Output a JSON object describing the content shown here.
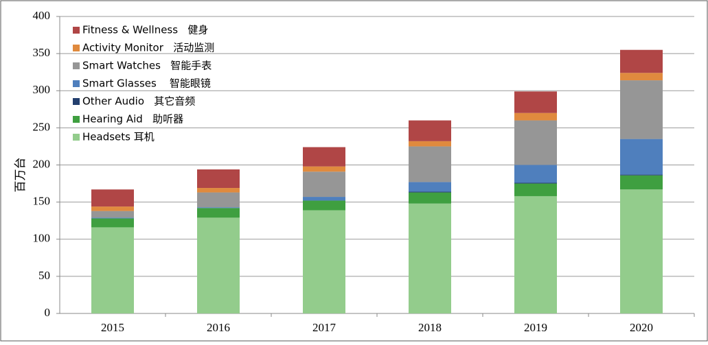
{
  "chart_data": {
    "type": "stacked-bar",
    "y_label": "百万台",
    "categories": [
      "2015",
      "2016",
      "2017",
      "2018",
      "2019",
      "2020"
    ],
    "series": [
      {
        "name": "Headsets 耳机",
        "color": "#93cc8c",
        "values": [
          116,
          129,
          139,
          148,
          158,
          167
        ]
      },
      {
        "name": "Hearing Aid   助听器",
        "color": "#3f9f40",
        "values": [
          12,
          13,
          13,
          15,
          17,
          19
        ]
      },
      {
        "name": "Other Audio   其它音频",
        "color": "#233f6e",
        "values": [
          0,
          0,
          0,
          1,
          1,
          1
        ]
      },
      {
        "name": "Smart Glasses    智能眼镜",
        "color": "#4f7fbd",
        "values": [
          1,
          1,
          5,
          13,
          24,
          48
        ]
      },
      {
        "name": "Smart Watches   智能手表",
        "color": "#969696",
        "values": [
          9,
          20,
          34,
          48,
          60,
          79
        ]
      },
      {
        "name": "Activity Monitor   活动监测",
        "color": "#e08a3e",
        "values": [
          6,
          6,
          7,
          7,
          10,
          10
        ]
      },
      {
        "name": "Fitness & Wellness   健身",
        "color": "#b04646",
        "values": [
          23,
          25,
          26,
          28,
          29,
          31
        ]
      }
    ],
    "ylim": [
      0,
      400
    ],
    "yticks": [
      0,
      50,
      100,
      150,
      200,
      250,
      300,
      350,
      400
    ],
    "grid": true
  }
}
